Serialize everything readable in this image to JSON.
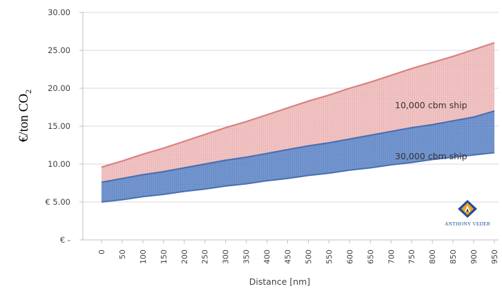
{
  "chart_data": {
    "type": "area",
    "xlabel": "Distance [nm]",
    "ylabel": "€/ton CO",
    "ylabel_subscript": "2",
    "x": [
      0,
      50,
      100,
      150,
      200,
      250,
      300,
      350,
      400,
      450,
      500,
      550,
      600,
      650,
      700,
      750,
      800,
      850,
      900,
      950
    ],
    "x_tick_labels": [
      "0",
      "50",
      "100",
      "150",
      "200",
      "250",
      "300",
      "350",
      "400",
      "450",
      "500",
      "550",
      "600",
      "650",
      "700",
      "750",
      "800",
      "850",
      "900",
      "950"
    ],
    "y_ticks": [
      0,
      5,
      10,
      15,
      20,
      25,
      30
    ],
    "y_tick_labels": [
      "€ -",
      "€ 5.00",
      "10.00",
      "15.00",
      "20.00",
      "25.00",
      "30.00"
    ],
    "ylim": [
      0,
      30
    ],
    "xlim": [
      0,
      950
    ],
    "grid": "horizontal",
    "legend": "none",
    "series": [
      {
        "name": "10,000 cbm ship",
        "color": "#e6a8a8",
        "line_color": "#d98080",
        "upper": [
          9.6,
          10.4,
          11.3,
          12.1,
          13.0,
          13.9,
          14.8,
          15.6,
          16.5,
          17.4,
          18.3,
          19.1,
          20.0,
          20.8,
          21.7,
          22.6,
          23.4,
          24.2,
          25.1,
          26.0
        ],
        "lower": [
          7.6,
          8.1,
          8.6,
          9.0,
          9.5,
          10.0,
          10.5,
          10.9,
          11.4,
          11.9,
          12.4,
          12.8,
          13.3,
          13.8,
          14.3,
          14.8,
          15.2,
          15.7,
          16.2,
          17.0
        ]
      },
      {
        "name": "30,000 cbm ship",
        "color": "#5b82c4",
        "line_color": "#4a6fb0",
        "upper": [
          7.6,
          8.1,
          8.6,
          9.0,
          9.5,
          10.0,
          10.5,
          10.9,
          11.4,
          11.9,
          12.4,
          12.8,
          13.3,
          13.8,
          14.3,
          14.8,
          15.2,
          15.7,
          16.2,
          17.0
        ],
        "lower": [
          5.0,
          5.3,
          5.7,
          6.0,
          6.4,
          6.7,
          7.1,
          7.4,
          7.8,
          8.1,
          8.5,
          8.8,
          9.2,
          9.5,
          9.9,
          10.2,
          10.6,
          10.9,
          11.2,
          11.5
        ]
      }
    ],
    "annotations": [
      {
        "text": "10,000 cbm ship",
        "series": 0
      },
      {
        "text": "30,000 cbm ship",
        "series": 1
      }
    ],
    "logo": {
      "text": "ANTHONY VEDER",
      "accent_color": "#f0a020",
      "primary_color": "#1f4e9c"
    }
  }
}
